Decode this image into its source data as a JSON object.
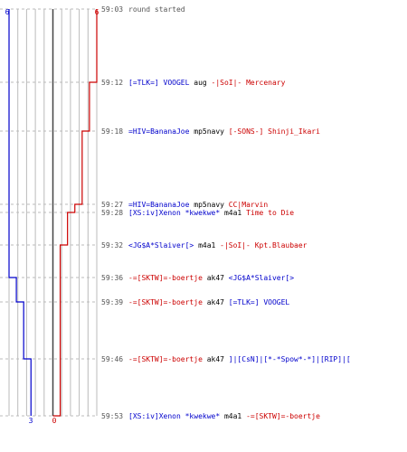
{
  "colors": {
    "blue": "#0000cc",
    "red": "#cc0000",
    "grey": "#555555",
    "grid": "#bbbbbb",
    "dash": "#bbbbbb",
    "axis": "#444444"
  },
  "scores": {
    "blue_start": "6",
    "red_start": "6",
    "blue_end": "3",
    "red_end": "0"
  },
  "events": [
    {
      "time": "59:03",
      "parts": [
        {
          "text": "round started",
          "color": "grey"
        }
      ]
    },
    {
      "time": "59:12",
      "parts": [
        {
          "text": "[=TLK=] VOOGEL",
          "color": "blue"
        },
        {
          "text": " aug ",
          "color": "black"
        },
        {
          "text": "-|SoI|- Mercenary",
          "color": "red"
        }
      ]
    },
    {
      "time": "59:18",
      "parts": [
        {
          "text": "=HIV=BananaJoe",
          "color": "blue"
        },
        {
          "text": " mp5navy ",
          "color": "black"
        },
        {
          "text": "[-SONS-] Shinji_Ikari",
          "color": "red"
        }
      ]
    },
    {
      "time": "59:27",
      "parts": [
        {
          "text": "=HIV=BananaJoe",
          "color": "blue"
        },
        {
          "text": " mp5navy ",
          "color": "black"
        },
        {
          "text": "CC|Marvin",
          "color": "red"
        }
      ]
    },
    {
      "time": "59:28",
      "parts": [
        {
          "text": "[XS:iv]Xenon *kwekwe*",
          "color": "blue"
        },
        {
          "text": " m4a1 ",
          "color": "black"
        },
        {
          "text": "Time to Die",
          "color": "red"
        }
      ]
    },
    {
      "time": "59:32",
      "parts": [
        {
          "text": "<JG$A*Slaiver[> ",
          "color": "blue"
        },
        {
          "text": " m4a1 ",
          "color": "black"
        },
        {
          "text": "-|SoI|- Kpt.Blaubaer",
          "color": "red"
        }
      ]
    },
    {
      "time": "59:36",
      "parts": [
        {
          "text": "-=[SKTW]=-boertje",
          "color": "red"
        },
        {
          "text": " ak47 ",
          "color": "black"
        },
        {
          "text": "<JG$A*Slaiver[>",
          "color": "blue"
        }
      ]
    },
    {
      "time": "59:39",
      "parts": [
        {
          "text": "-=[SKTW]=-boertje",
          "color": "red"
        },
        {
          "text": " ak47 ",
          "color": "black"
        },
        {
          "text": "[=TLK=] VOOGEL",
          "color": "blue"
        }
      ]
    },
    {
      "time": "59:46",
      "parts": [
        {
          "text": "-=[SKTW]=-boertje",
          "color": "red"
        },
        {
          "text": " ak47 ",
          "color": "black"
        },
        {
          "text": "]|[CsN]|[*-*Spow*-*]|[RIP]|[",
          "color": "blue"
        }
      ]
    },
    {
      "time": "59:53",
      "parts": [
        {
          "text": "[XS:iv]Xenon *kwekwe*",
          "color": "blue"
        },
        {
          "text": " m4a1 ",
          "color": "black"
        },
        {
          "text": "-=[SKTW]=-boertje",
          "color": "red"
        }
      ]
    }
  ],
  "chart_data": {
    "type": "line",
    "series": [
      {
        "color": "blue",
        "time": [
          "59:03",
          "59:36",
          "59:39",
          "59:46",
          "59:53"
        ],
        "values": [
          6,
          5,
          4,
          3,
          3
        ]
      },
      {
        "color": "red",
        "time": [
          "59:03",
          "59:12",
          "59:18",
          "59:27",
          "59:28",
          "59:32",
          "59:53"
        ],
        "values": [
          6,
          5,
          4,
          3,
          2,
          1,
          0
        ]
      }
    ],
    "ylim": [
      0,
      6
    ]
  }
}
